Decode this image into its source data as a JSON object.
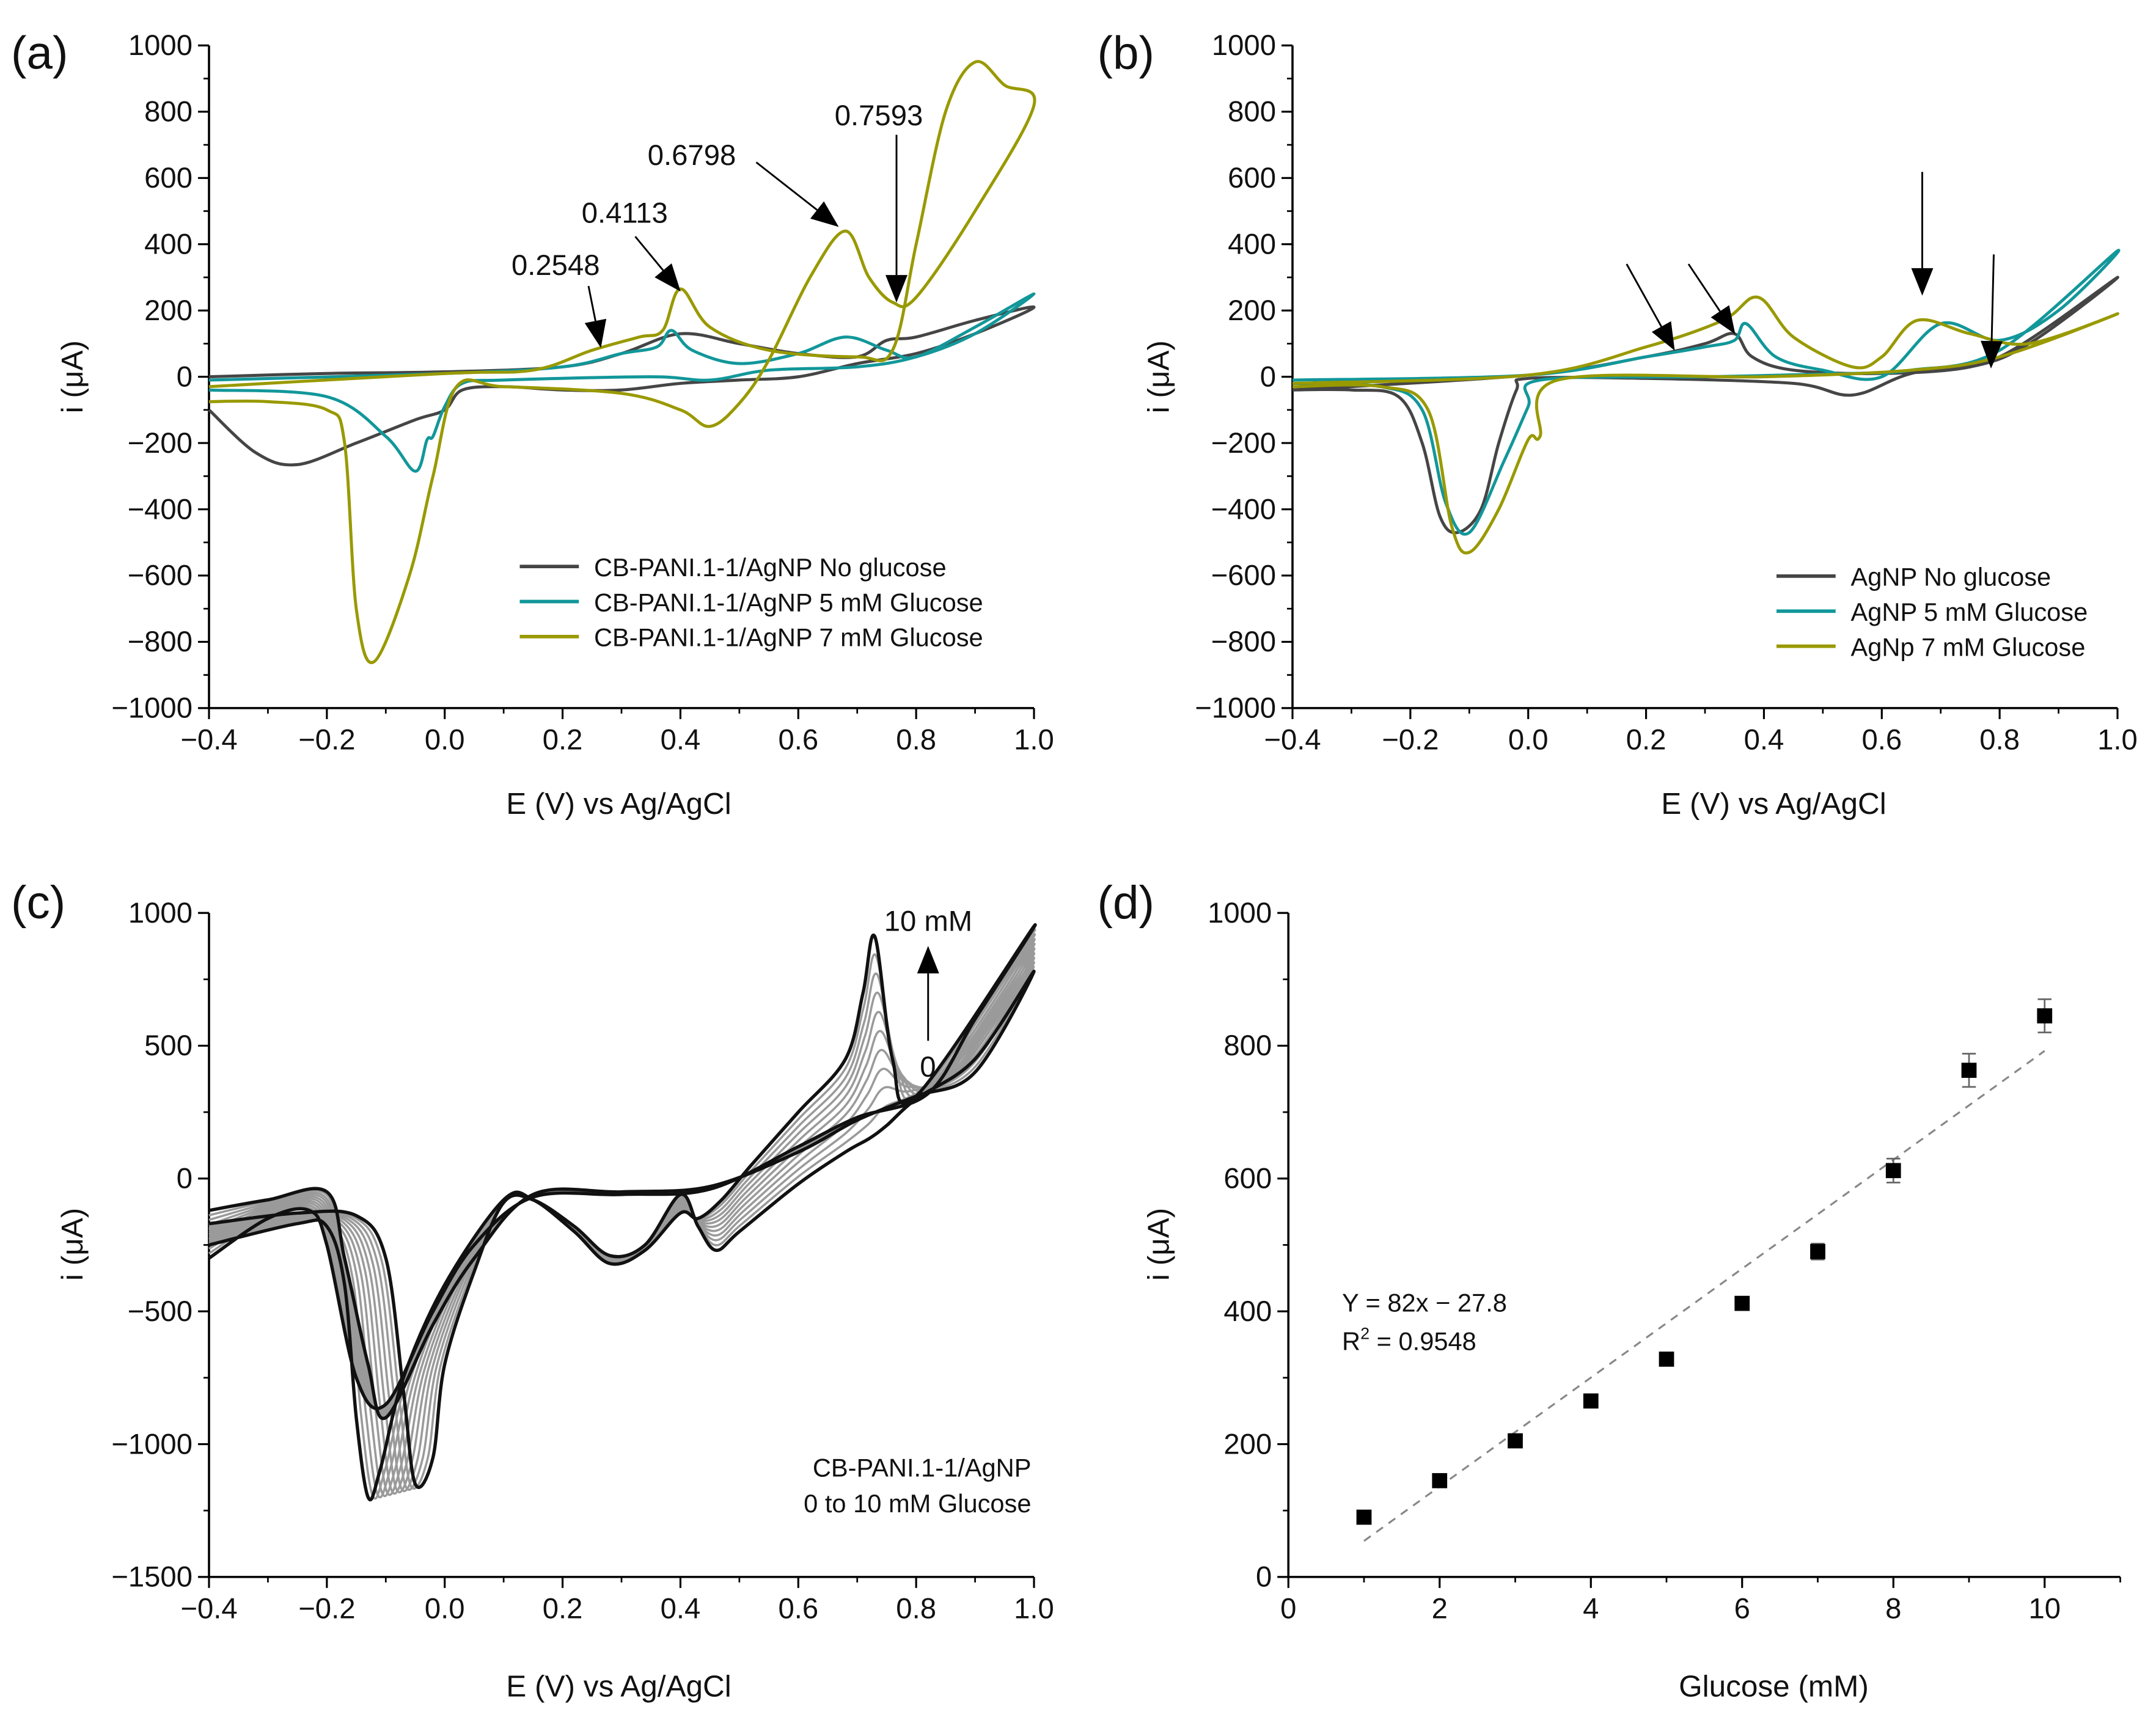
{
  "chart_data": [
    {
      "panel": "(a)",
      "type": "line",
      "xlabel": "E (V) vs Ag/AgCl",
      "ylabel": "i (μA)",
      "xlim": [
        -0.4,
        1.0
      ],
      "ylim": [
        -1000,
        1000
      ],
      "xticks": [
        "−0.4",
        "−0.2",
        "0.0",
        "0.2",
        "0.4",
        "0.6",
        "0.8",
        "1.0"
      ],
      "yticks": [
        "−1000",
        "−800",
        "−600",
        "−400",
        "−200",
        "0",
        "200",
        "400",
        "600",
        "800",
        "1000"
      ],
      "legend_position": "bottom-right",
      "annotations": [
        "0.2548",
        "0.4113",
        "0.6798",
        "0.7593"
      ],
      "series": [
        {
          "name": "CB-PANI.1-1/AgNP No glucose",
          "color": "#454545",
          "x": [
            -0.4,
            -0.2,
            0,
            0.2,
            0.3,
            0.4,
            0.5,
            0.6,
            0.7,
            0.75,
            0.8,
            0.9,
            1.0,
            0.9,
            0.8,
            0.7,
            0.6,
            0.5,
            0.4,
            0.3,
            0.2,
            0.1,
            0.03,
            0.0,
            -0.05,
            -0.15,
            -0.25,
            -0.32,
            -0.4
          ],
          "y": [
            0,
            10,
            15,
            30,
            70,
            130,
            100,
            70,
            60,
            110,
            120,
            170,
            210,
            130,
            70,
            40,
            0,
            -10,
            -20,
            -40,
            -40,
            -30,
            -40,
            -100,
            -130,
            -200,
            -265,
            -230,
            -100
          ]
        },
        {
          "name": "CB-PANI.1-1/AgNP 5 mM Glucose",
          "color": "#12979a",
          "x": [
            -0.4,
            0,
            0.2,
            0.3,
            0.36,
            0.385,
            0.42,
            0.5,
            0.6,
            0.68,
            0.75,
            0.8,
            0.9,
            1.0,
            0.9,
            0.8,
            0.7,
            0.55,
            0.45,
            0.35,
            0.1,
            0.03,
            0.0,
            -0.02,
            -0.03,
            -0.05,
            -0.1,
            -0.2,
            -0.4
          ],
          "y": [
            -10,
            10,
            30,
            70,
            90,
            140,
            80,
            40,
            70,
            120,
            80,
            60,
            150,
            250,
            130,
            60,
            30,
            20,
            -10,
            0,
            -10,
            -20,
            -90,
            -180,
            -190,
            -285,
            -180,
            -60,
            -40
          ]
        },
        {
          "name": "CB-PANI.1-1/AgNP 7 mM Glucose",
          "color": "#999900",
          "x": [
            -0.4,
            0,
            0.15,
            0.25,
            0.33,
            0.37,
            0.4,
            0.45,
            0.55,
            0.7,
            0.76,
            0.8,
            0.85,
            0.9,
            0.95,
            1.0,
            0.9,
            0.8,
            0.76,
            0.72,
            0.68,
            0.62,
            0.55,
            0.5,
            0.45,
            0.4,
            0.3,
            0.1,
            0.02,
            -0.02,
            -0.06,
            -0.12,
            -0.15,
            -0.17,
            -0.2,
            -0.3,
            -0.4
          ],
          "y": [
            -30,
            10,
            20,
            80,
            120,
            140,
            265,
            150,
            80,
            60,
            80,
            400,
            800,
            950,
            880,
            820,
            500,
            240,
            225,
            300,
            440,
            300,
            50,
            -80,
            -150,
            -100,
            -50,
            -30,
            -30,
            -300,
            -600,
            -860,
            -700,
            -200,
            -100,
            -75,
            -75
          ]
        }
      ]
    },
    {
      "panel": "(b)",
      "type": "line",
      "xlabel": "E (V) vs Ag/AgCl",
      "ylabel": "i (μA)",
      "xlim": [
        -0.4,
        1.0
      ],
      "ylim": [
        -1000,
        1000
      ],
      "xticks": [
        "−0.4",
        "−0.2",
        "0.0",
        "0.2",
        "0.4",
        "0.6",
        "0.8",
        "1.0"
      ],
      "yticks": [
        "−1000",
        "−800",
        "−600",
        "−400",
        "−200",
        "0",
        "200",
        "400",
        "600",
        "800",
        "1000"
      ],
      "legend_position": "bottom-right",
      "series": [
        {
          "name": "AgNP No glucose",
          "color": "#454545",
          "x": [
            -0.4,
            0,
            0.2,
            0.3,
            0.35,
            0.38,
            0.45,
            0.6,
            0.75,
            0.85,
            1.0,
            0.8,
            0.65,
            0.55,
            0.45,
            0.2,
            0.0,
            -0.02,
            -0.05,
            -0.08,
            -0.12,
            -0.15,
            -0.18,
            -0.22,
            -0.3,
            -0.4
          ],
          "y": [
            -40,
            5,
            60,
            100,
            130,
            60,
            20,
            10,
            30,
            100,
            300,
            60,
            10,
            -55,
            -20,
            -5,
            -5,
            -40,
            -200,
            -400,
            -470,
            -420,
            -200,
            -60,
            -40,
            -40
          ]
        },
        {
          "name": "AgNP 5 mM Glucose",
          "color": "#12979a",
          "x": [
            -0.4,
            0,
            0.2,
            0.3,
            0.35,
            0.37,
            0.42,
            0.5,
            0.6,
            0.7,
            0.8,
            0.9,
            1.0,
            0.8,
            0.65,
            0.55,
            0.3,
            0.02,
            0.0,
            -0.04,
            -0.1,
            -0.14,
            -0.18,
            -0.25,
            -0.4
          ],
          "y": [
            -10,
            5,
            60,
            90,
            110,
            160,
            60,
            20,
            0,
            160,
            110,
            200,
            380,
            80,
            20,
            10,
            0,
            -10,
            -90,
            -250,
            -470,
            -380,
            -100,
            -30,
            -20
          ]
        },
        {
          "name": "AgNp 7 mM Glucose",
          "color": "#999900",
          "x": [
            -0.4,
            0,
            0.2,
            0.33,
            0.39,
            0.45,
            0.55,
            0.6,
            0.66,
            0.75,
            0.85,
            1.0,
            0.8,
            0.65,
            0.4,
            0.05,
            0.02,
            0.0,
            -0.05,
            -0.1,
            -0.13,
            -0.17,
            -0.25,
            -0.4
          ],
          "y": [
            -20,
            5,
            90,
            170,
            240,
            120,
            30,
            60,
            170,
            130,
            100,
            190,
            60,
            20,
            0,
            -10,
            -180,
            -190,
            -400,
            -530,
            -450,
            -100,
            -30,
            -30
          ]
        }
      ]
    },
    {
      "panel": "(c)",
      "type": "line",
      "xlabel": "E (V) vs Ag/AgCl",
      "ylabel": "i (μA)",
      "xlim": [
        -0.4,
        1.0
      ],
      "ylim": [
        -1500,
        1000
      ],
      "xticks": [
        "−0.4",
        "−0.2",
        "0.0",
        "0.2",
        "0.4",
        "0.6",
        "0.8",
        "1.0"
      ],
      "yticks": [
        "−1500",
        "−1000",
        "−500",
        "0",
        "500",
        "1000"
      ],
      "annotations": {
        "top": "10 mM",
        "bottom": "0"
      },
      "caption": [
        "CB-PANI.1-1/AgNP",
        "0 to 10 mM Glucose"
      ],
      "intermediate_curve_count": 9,
      "series": [
        {
          "name": "0 mM",
          "color": "#111111",
          "x": [
            -0.4,
            -0.25,
            -0.15,
            -0.1,
            -0.07,
            -0.05,
            -0.02,
            0.0,
            0.05,
            0.1,
            0.15,
            0.22,
            0.28,
            0.34,
            0.4,
            0.43,
            0.46,
            0.5,
            0.6,
            0.68,
            0.72,
            0.75,
            0.8,
            0.9,
            1.0,
            0.9,
            0.8,
            0.7,
            0.6,
            0.45,
            0.3,
            0.15,
            0.05,
            -0.02,
            -0.1,
            -0.13,
            -0.17,
            -0.2,
            -0.3,
            -0.4
          ],
          "y": [
            -170,
            -130,
            -140,
            -300,
            -800,
            -1150,
            -1050,
            -700,
            -350,
            -90,
            -80,
            -180,
            -290,
            -250,
            -60,
            -180,
            -270,
            -200,
            -20,
            100,
            150,
            200,
            300,
            450,
            780,
            400,
            310,
            220,
            100,
            -30,
            -50,
            -60,
            -300,
            -550,
            -900,
            -700,
            -300,
            -50,
            -80,
            -120
          ]
        },
        {
          "name": "10 mM",
          "color": "#111111",
          "x": [
            -0.4,
            -0.25,
            -0.2,
            -0.17,
            -0.15,
            -0.13,
            -0.11,
            -0.07,
            0.0,
            0.1,
            0.15,
            0.22,
            0.28,
            0.34,
            0.4,
            0.43,
            0.47,
            0.52,
            0.6,
            0.68,
            0.71,
            0.73,
            0.76,
            0.8,
            1.0,
            0.9,
            0.82,
            0.7,
            0.6,
            0.45,
            0.3,
            0.15,
            0.05,
            -0.02,
            -0.1,
            -0.15,
            -0.2,
            -0.23,
            -0.3,
            -0.4
          ],
          "y": [
            -250,
            -170,
            -180,
            -400,
            -900,
            -1200,
            -1100,
            -750,
            -400,
            -80,
            -80,
            -200,
            -320,
            -270,
            -130,
            -150,
            -80,
            50,
            250,
            450,
            700,
            910,
            450,
            310,
            950,
            600,
            320,
            230,
            120,
            -40,
            -60,
            -70,
            -250,
            -500,
            -850,
            -750,
            -250,
            -120,
            -150,
            -300
          ]
        }
      ]
    },
    {
      "panel": "(d)",
      "type": "scatter",
      "xlabel": "Glucose (mM)",
      "ylabel": "i (μA)",
      "xlim": [
        0,
        11
      ],
      "ylim": [
        0,
        1000
      ],
      "xticks": [
        "0",
        "2",
        "4",
        "6",
        "8",
        "10"
      ],
      "yticks": [
        "0",
        "200",
        "400",
        "600",
        "800",
        "1000"
      ],
      "x": [
        1,
        2,
        3,
        4,
        5,
        6,
        7,
        8,
        9,
        10
      ],
      "y": [
        90,
        145,
        205,
        265,
        328,
        412,
        490,
        612,
        763,
        845
      ],
      "yerr": [
        4,
        5,
        6,
        6,
        5,
        7,
        12,
        18,
        25,
        25
      ],
      "fit": {
        "slope": 82,
        "intercept": -27.8,
        "equation": "Y = 82x − 27.8",
        "r2_label": "R",
        "r2_value": "2",
        "r2_text": " = 0.9548"
      }
    }
  ]
}
